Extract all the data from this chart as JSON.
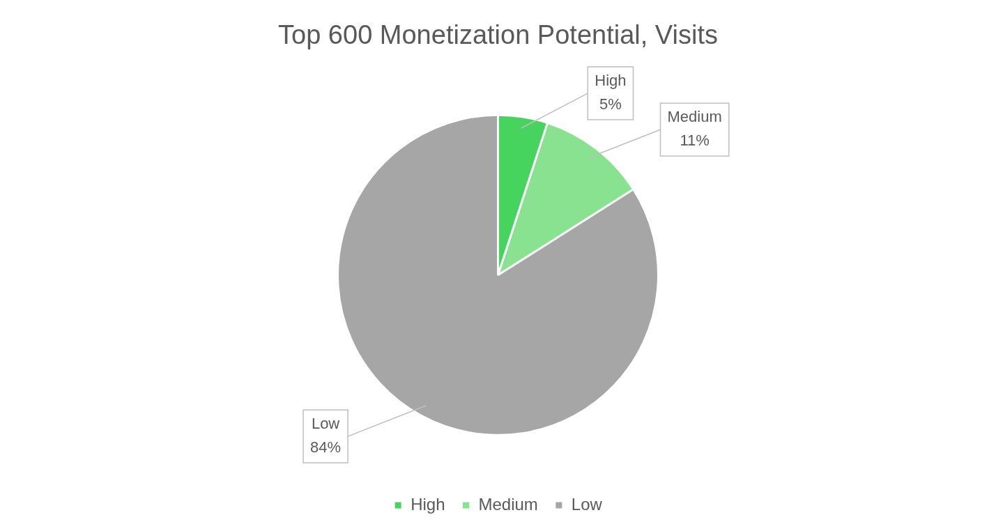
{
  "chart_data": {
    "type": "pie",
    "title": "Top 600 Monetization Potential, Visits",
    "categories": [
      "High",
      "Medium",
      "Low"
    ],
    "values": [
      5,
      11,
      84
    ],
    "colors": [
      "#47d45e",
      "#88e290",
      "#a6a6a6"
    ],
    "value_labels": [
      "5%",
      "11%",
      "84%"
    ],
    "legend": "bottom"
  }
}
